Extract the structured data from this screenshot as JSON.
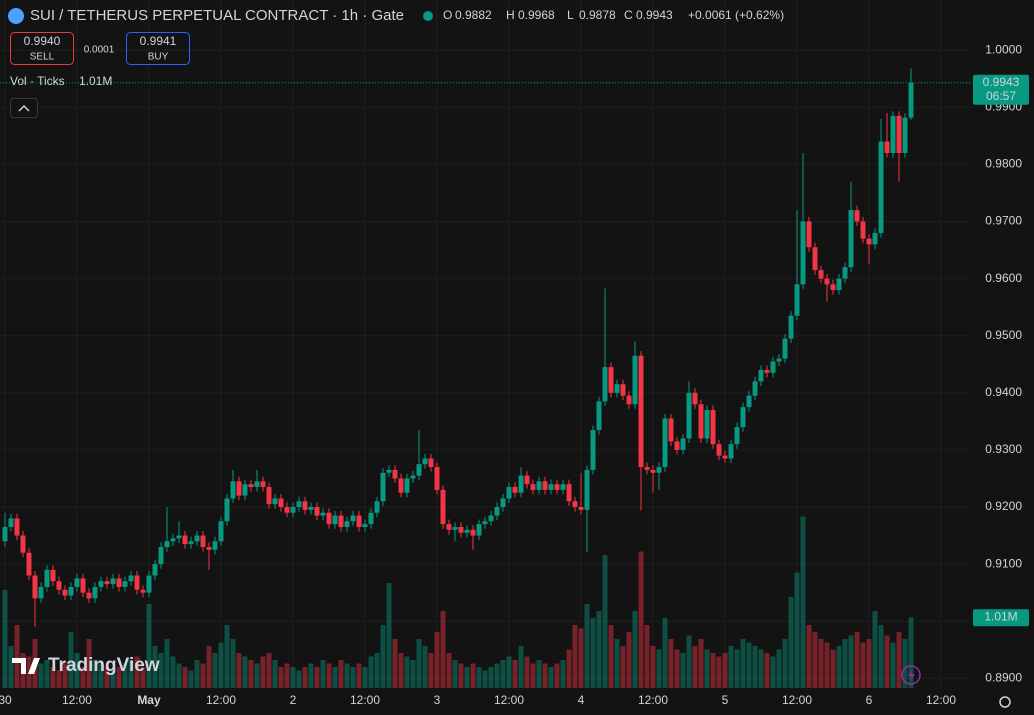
{
  "header": {
    "title": "SUI / TETHERUS PERPETUAL CONTRACT · 1h · Gate",
    "ohlc": [
      {
        "label": "O",
        "value": "0.9882"
      },
      {
        "label": "H",
        "value": "0.9968"
      },
      {
        "label": "L",
        "value": "0.9878"
      },
      {
        "label": "C",
        "value": "0.9943"
      }
    ],
    "change": "+0.0061 (+0.62%)",
    "sell_price": "0.9940",
    "sell_label": "SELL",
    "spread": "0.0001",
    "buy_price": "0.9941",
    "buy_label": "BUY",
    "volume_legend": "Vol · Ticks"
  },
  "chart_data": {
    "type": "candlestick",
    "open": [
      0.914,
      0.9165,
      0.918,
      0.915,
      0.912,
      0.908,
      0.904,
      0.906,
      0.909,
      0.907,
      0.9055,
      0.9045,
      0.906,
      0.9075,
      0.905,
      0.904,
      0.906,
      0.907,
      0.9065,
      0.9075,
      0.906,
      0.907,
      0.908,
      0.9055,
      0.905,
      0.908,
      0.91,
      0.913,
      0.914,
      0.9145,
      0.915,
      0.9135,
      0.914,
      0.915,
      0.913,
      0.9125,
      0.914,
      0.9175,
      0.9215,
      0.9245,
      0.922,
      0.924,
      0.9235,
      0.9245,
      0.9235,
      0.9205,
      0.9215,
      0.92,
      0.919,
      0.92,
      0.921,
      0.9195,
      0.92,
      0.9185,
      0.919,
      0.917,
      0.9185,
      0.9165,
      0.9175,
      0.9185,
      0.9165,
      0.917,
      0.919,
      0.921,
      0.926,
      0.9265,
      0.925,
      0.9225,
      0.925,
      0.9255,
      0.9275,
      0.9285,
      0.927,
      0.923,
      0.917,
      0.916,
      0.9165,
      0.9155,
      0.916,
      0.915,
      0.917,
      0.9175,
      0.9185,
      0.92,
      0.9215,
      0.9235,
      0.9225,
      0.9255,
      0.924,
      0.923,
      0.9245,
      0.923,
      0.924,
      0.923,
      0.924,
      0.921,
      0.92,
      0.9195,
      0.9265,
      0.9335,
      0.9385,
      0.9445,
      0.94,
      0.9415,
      0.9395,
      0.938,
      0.9465,
      0.927,
      0.9265,
      0.926,
      0.927,
      0.9355,
      0.9315,
      0.93,
      0.932,
      0.94,
      0.938,
      0.932,
      0.937,
      0.931,
      0.929,
      0.9285,
      0.931,
      0.934,
      0.9375,
      0.9395,
      0.942,
      0.944,
      0.9435,
      0.9455,
      0.946,
      0.9495,
      0.9535,
      0.959,
      0.97,
      0.9655,
      0.9615,
      0.96,
      0.959,
      0.958,
      0.96,
      0.962,
      0.972,
      0.97,
      0.967,
      0.966,
      0.968,
      0.984,
      0.982,
      0.9885,
      0.982,
      0.9882
    ],
    "high": [
      0.919,
      0.9188,
      0.9188,
      0.9158,
      0.9128,
      0.9088,
      0.9068,
      0.9098,
      0.9098,
      0.9078,
      0.9063,
      0.9068,
      0.9083,
      0.9083,
      0.9058,
      0.9068,
      0.9078,
      0.9078,
      0.9083,
      0.9083,
      0.9078,
      0.9088,
      0.9088,
      0.9063,
      0.9088,
      0.9108,
      0.9138,
      0.92,
      0.9153,
      0.9175,
      0.9158,
      0.9148,
      0.9158,
      0.9158,
      0.9138,
      0.9148,
      0.9183,
      0.9223,
      0.9265,
      0.9253,
      0.9248,
      0.9248,
      0.9265,
      0.9253,
      0.9243,
      0.9223,
      0.9223,
      0.9208,
      0.9208,
      0.9218,
      0.9218,
      0.9208,
      0.9208,
      0.9198,
      0.9198,
      0.9193,
      0.9193,
      0.9183,
      0.9193,
      0.9193,
      0.9178,
      0.9198,
      0.9218,
      0.9268,
      0.9273,
      0.9273,
      0.9258,
      0.9258,
      0.9263,
      0.9335,
      0.9293,
      0.9293,
      0.9278,
      0.9238,
      0.9178,
      0.9173,
      0.9173,
      0.9168,
      0.9168,
      0.9178,
      0.9183,
      0.9193,
      0.9208,
      0.9223,
      0.9243,
      0.9243,
      0.927,
      0.9263,
      0.9248,
      0.9253,
      0.9253,
      0.9248,
      0.9248,
      0.9248,
      0.9248,
      0.9218,
      0.926,
      0.9273,
      0.9343,
      0.9393,
      0.9583,
      0.9453,
      0.9423,
      0.9423,
      0.9403,
      0.949,
      0.9473,
      0.9278,
      0.9273,
      0.9278,
      0.9363,
      0.9363,
      0.9323,
      0.9328,
      0.942,
      0.9408,
      0.9388,
      0.9378,
      0.9378,
      0.9318,
      0.9298,
      0.9318,
      0.9348,
      0.9383,
      0.9403,
      0.9428,
      0.9448,
      0.9448,
      0.9463,
      0.9468,
      0.9503,
      0.9543,
      0.972,
      0.982,
      0.9708,
      0.9663,
      0.9623,
      0.9608,
      0.9598,
      0.9608,
      0.9628,
      0.977,
      0.9728,
      0.9708,
      0.9678,
      0.9688,
      0.988,
      0.989,
      0.9893,
      0.9893,
      0.989,
      0.9968
    ],
    "low": [
      0.913,
      0.9157,
      0.9142,
      0.9112,
      0.9072,
      0.899,
      0.9032,
      0.9052,
      0.9062,
      0.9047,
      0.9037,
      0.9037,
      0.9052,
      0.9042,
      0.9032,
      0.9032,
      0.9052,
      0.9057,
      0.9057,
      0.9052,
      0.9052,
      0.9062,
      0.9047,
      0.9042,
      0.9042,
      0.9072,
      0.9092,
      0.9122,
      0.9132,
      0.9137,
      0.9127,
      0.9127,
      0.9132,
      0.9122,
      0.909,
      0.9117,
      0.9132,
      0.9167,
      0.9207,
      0.9212,
      0.9212,
      0.9227,
      0.9227,
      0.9227,
      0.9197,
      0.9197,
      0.9192,
      0.9182,
      0.9182,
      0.9192,
      0.9187,
      0.9187,
      0.9177,
      0.9177,
      0.9162,
      0.9162,
      0.9157,
      0.9157,
      0.9167,
      0.9157,
      0.9157,
      0.9162,
      0.9182,
      0.9202,
      0.9252,
      0.9242,
      0.9217,
      0.9217,
      0.9242,
      0.9247,
      0.9267,
      0.9262,
      0.9222,
      0.9162,
      0.9152,
      0.914,
      0.9147,
      0.9147,
      0.9125,
      0.9142,
      0.9162,
      0.9167,
      0.9177,
      0.9192,
      0.9207,
      0.9217,
      0.9217,
      0.9232,
      0.9222,
      0.9222,
      0.9222,
      0.9222,
      0.9222,
      0.9222,
      0.9202,
      0.9192,
      0.9187,
      0.9121,
      0.9257,
      0.9327,
      0.9377,
      0.9392,
      0.9392,
      0.9387,
      0.9372,
      0.9372,
      0.9194,
      0.9257,
      0.9225,
      0.923,
      0.9262,
      0.9307,
      0.9292,
      0.9292,
      0.9312,
      0.9372,
      0.9312,
      0.9312,
      0.9302,
      0.9282,
      0.9277,
      0.9277,
      0.9302,
      0.9332,
      0.9367,
      0.9387,
      0.9412,
      0.9427,
      0.9427,
      0.9447,
      0.9452,
      0.9487,
      0.9527,
      0.9582,
      0.9647,
      0.9607,
      0.9592,
      0.956,
      0.9572,
      0.9572,
      0.9592,
      0.9612,
      0.9692,
      0.9662,
      0.9625,
      0.9652,
      0.9672,
      0.9812,
      0.9812,
      0.977,
      0.9812,
      0.9878
    ],
    "close": [
      0.9165,
      0.918,
      0.915,
      0.912,
      0.908,
      0.904,
      0.906,
      0.909,
      0.907,
      0.9055,
      0.9045,
      0.906,
      0.9075,
      0.905,
      0.904,
      0.906,
      0.907,
      0.9065,
      0.9075,
      0.906,
      0.907,
      0.908,
      0.9055,
      0.905,
      0.908,
      0.91,
      0.913,
      0.914,
      0.9145,
      0.915,
      0.9135,
      0.914,
      0.915,
      0.913,
      0.9125,
      0.914,
      0.9175,
      0.9215,
      0.9245,
      0.922,
      0.924,
      0.9235,
      0.9245,
      0.9235,
      0.9205,
      0.9215,
      0.92,
      0.919,
      0.92,
      0.921,
      0.9195,
      0.92,
      0.9185,
      0.919,
      0.917,
      0.9185,
      0.9165,
      0.9175,
      0.9185,
      0.9165,
      0.917,
      0.919,
      0.921,
      0.926,
      0.9265,
      0.925,
      0.9225,
      0.925,
      0.9255,
      0.9275,
      0.9285,
      0.927,
      0.923,
      0.917,
      0.916,
      0.9165,
      0.9155,
      0.916,
      0.915,
      0.917,
      0.9175,
      0.9185,
      0.92,
      0.9215,
      0.9235,
      0.9225,
      0.9255,
      0.924,
      0.923,
      0.9245,
      0.923,
      0.924,
      0.923,
      0.924,
      0.921,
      0.92,
      0.9195,
      0.9265,
      0.9335,
      0.9385,
      0.9445,
      0.94,
      0.9415,
      0.9395,
      0.938,
      0.9465,
      0.927,
      0.9265,
      0.926,
      0.927,
      0.9355,
      0.9315,
      0.93,
      0.932,
      0.94,
      0.938,
      0.932,
      0.937,
      0.931,
      0.929,
      0.9285,
      0.931,
      0.934,
      0.9375,
      0.9395,
      0.942,
      0.944,
      0.9435,
      0.9455,
      0.946,
      0.9495,
      0.9535,
      0.959,
      0.97,
      0.9655,
      0.9615,
      0.96,
      0.959,
      0.958,
      0.96,
      0.962,
      0.972,
      0.97,
      0.967,
      0.966,
      0.968,
      0.984,
      0.982,
      0.9885,
      0.982,
      0.9882,
      0.9943
    ],
    "volume": [
      1400000,
      600000,
      900000,
      500000,
      450000,
      700000,
      350000,
      400000,
      300000,
      250000,
      350000,
      800000,
      500000,
      300000,
      700000,
      400000,
      350000,
      300000,
      250000,
      300000,
      350000,
      400000,
      450000,
      300000,
      1200000,
      600000,
      500000,
      700000,
      450000,
      350000,
      300000,
      250000,
      400000,
      350000,
      600000,
      500000,
      650000,
      900000,
      700000,
      500000,
      450000,
      400000,
      350000,
      450000,
      500000,
      400000,
      300000,
      350000,
      300000,
      250000,
      300000,
      350000,
      300000,
      400000,
      350000,
      300000,
      400000,
      350000,
      300000,
      350000,
      300000,
      450000,
      500000,
      900000,
      1500000,
      700000,
      500000,
      450000,
      400000,
      700000,
      600000,
      500000,
      800000,
      1100000,
      500000,
      400000,
      350000,
      300000,
      350000,
      300000,
      250000,
      300000,
      350000,
      400000,
      450000,
      400000,
      600000,
      450000,
      350000,
      400000,
      350000,
      300000,
      350000,
      400000,
      550000,
      900000,
      850000,
      1200000,
      1000000,
      1100000,
      1900000,
      900000,
      700000,
      600000,
      800000,
      1100000,
      1950000,
      900000,
      600000,
      550000,
      1000000,
      700000,
      550000,
      500000,
      750000,
      600000,
      700000,
      550000,
      500000,
      450000,
      500000,
      600000,
      550000,
      700000,
      650000,
      600000,
      550000,
      500000,
      450000,
      550000,
      700000,
      1300000,
      1650000,
      2450000,
      900000,
      800000,
      700000,
      650000,
      550000,
      600000,
      700000,
      750000,
      800000,
      650000,
      700000,
      1100000,
      900000,
      750000,
      650000,
      800000,
      700000,
      1010000
    ],
    "last_volume_label": "1.01M",
    "up_color": "#089981",
    "down_color": "#f23645",
    "ylim": [
      0.8883,
      1.0088
    ],
    "yticks": [
      {
        "value": 0.89,
        "label": "0.8900"
      },
      {
        "value": 0.9,
        "label": "0.9000"
      },
      {
        "value": 0.91,
        "label": "0.9100"
      },
      {
        "value": 0.92,
        "label": "0.9200"
      },
      {
        "value": 0.93,
        "label": "0.9300"
      },
      {
        "value": 0.94,
        "label": "0.9400"
      },
      {
        "value": 0.95,
        "label": "0.9500"
      },
      {
        "value": 0.96,
        "label": "0.9600"
      },
      {
        "value": 0.97,
        "label": "0.9700"
      },
      {
        "value": 0.98,
        "label": "0.9800"
      },
      {
        "value": 0.99,
        "label": "0.9900"
      },
      {
        "value": 1.0,
        "label": "1.0000"
      }
    ],
    "xlim": [
      -0.83,
      160.83
    ],
    "xticks": [
      {
        "value": 0,
        "label": "30"
      },
      {
        "value": 12,
        "label": "12:00"
      },
      {
        "value": 24,
        "label": "May"
      },
      {
        "value": 36,
        "label": "12:00"
      },
      {
        "value": 48,
        "label": "2"
      },
      {
        "value": 60,
        "label": "12:00"
      },
      {
        "value": 72,
        "label": "3"
      },
      {
        "value": 84,
        "label": "12:00"
      },
      {
        "value": 96,
        "label": "4"
      },
      {
        "value": 108,
        "label": "12:00"
      },
      {
        "value": 120,
        "label": "5"
      },
      {
        "value": 132,
        "label": "12:00"
      },
      {
        "value": 144,
        "label": "6"
      },
      {
        "value": 156,
        "label": "12:00"
      }
    ],
    "last_price_label": "0.9943",
    "countdown": "06:57",
    "grid": true
  },
  "branding": "TradingView"
}
